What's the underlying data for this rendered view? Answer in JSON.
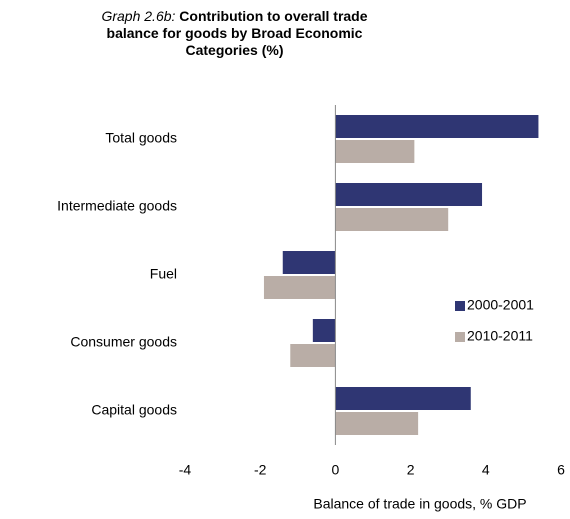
{
  "chart_data": {
    "type": "hbar",
    "title_prefix": "Graph 2.6b:",
    "title": "Contribution to overall trade balance for goods by Broad Economic Categories (%)",
    "x_label": "Balance of  trade in goods, % GDP",
    "categories": [
      "Total goods",
      "Intermediate goods",
      "Fuel",
      "Consumer goods",
      "Capital goods"
    ],
    "series": [
      {
        "name": "2000-2001",
        "color": "#2f3673",
        "values": [
          5.4,
          3.9,
          -1.4,
          -0.6,
          3.6
        ]
      },
      {
        "name": "2010-2011",
        "color": "#b9ada6",
        "values": [
          2.1,
          3.0,
          -1.9,
          -1.2,
          2.2
        ]
      }
    ],
    "xlim": [
      -4,
      6
    ],
    "xticks": [
      -4,
      -2,
      0,
      2,
      4,
      6
    ],
    "legend": "right"
  }
}
